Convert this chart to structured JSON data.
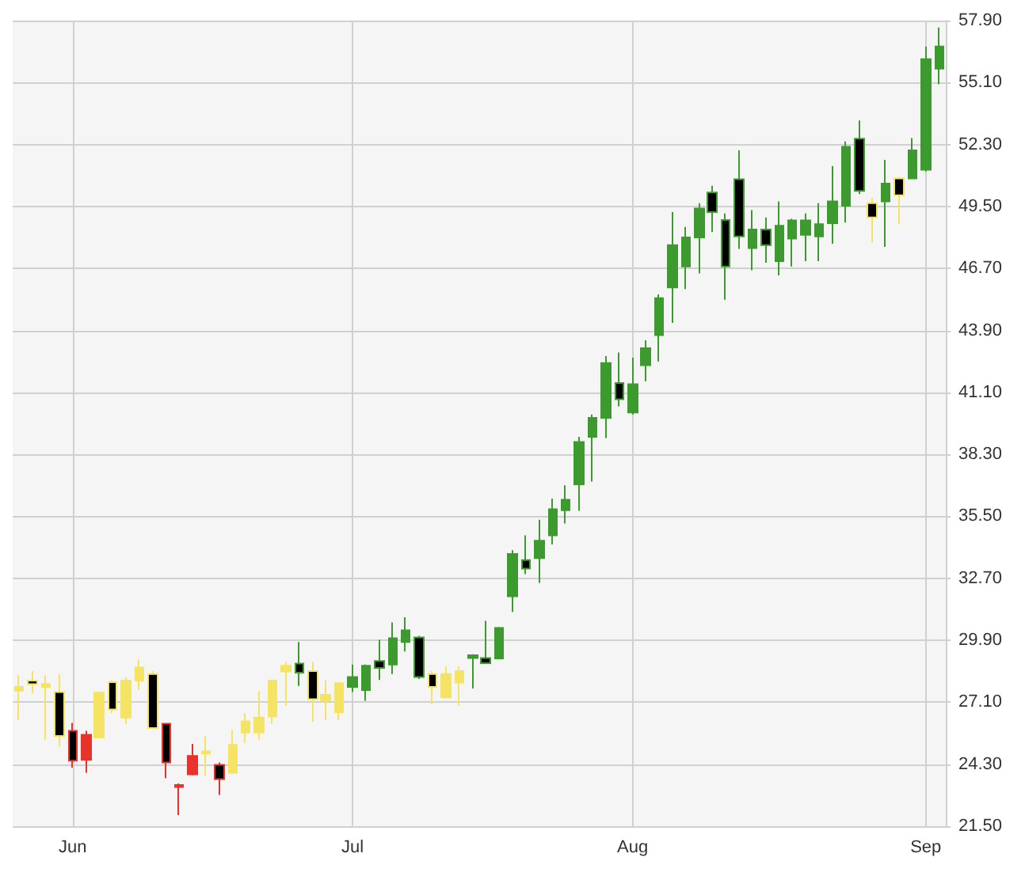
{
  "chart_data": {
    "type": "candlestick",
    "categories": [
      null,
      null,
      null,
      null,
      "Jun",
      null,
      null,
      null,
      null,
      null,
      null,
      null,
      null,
      null,
      null,
      null,
      null,
      null,
      null,
      null,
      null,
      null,
      null,
      null,
      null,
      "Jul",
      null,
      null,
      null,
      null,
      null,
      null,
      null,
      null,
      null,
      null,
      null,
      null,
      null,
      null,
      null,
      null,
      null,
      null,
      null,
      null,
      "Aug",
      null,
      null,
      null,
      null,
      null,
      null,
      null,
      null,
      null,
      null,
      null,
      null,
      null,
      null,
      null,
      null,
      null,
      null,
      null,
      null,
      null,
      "Sep",
      null
    ],
    "ohlc": [
      [
        27.62,
        28.32,
        26.29,
        27.79
      ],
      [
        28.08,
        28.51,
        27.49,
        27.92
      ],
      [
        27.79,
        28.32,
        25.41,
        27.92
      ],
      [
        27.56,
        28.37,
        25.1,
        25.58
      ],
      [
        25.81,
        26.17,
        24.15,
        24.46
      ],
      [
        24.5,
        25.81,
        23.91,
        25.63
      ],
      [
        25.51,
        27.6,
        25.45,
        27.53
      ],
      [
        28.01,
        28.1,
        26.6,
        26.77
      ],
      [
        26.41,
        28.24,
        26.1,
        28.08
      ],
      [
        28.08,
        29.03,
        27.65,
        28.67
      ],
      [
        28.37,
        28.51,
        25.9,
        25.93
      ],
      [
        26.13,
        26.15,
        23.67,
        24.38
      ],
      [
        23.27,
        23.43,
        22.0,
        23.36
      ],
      [
        23.84,
        25.22,
        23.8,
        24.67
      ],
      [
        24.79,
        25.58,
        23.79,
        24.88
      ],
      [
        24.27,
        24.38,
        22.91,
        23.63
      ],
      [
        23.91,
        25.86,
        23.9,
        25.17
      ],
      [
        25.74,
        26.6,
        25.27,
        26.24
      ],
      [
        25.74,
        27.6,
        25.41,
        26.41
      ],
      [
        26.46,
        28.1,
        26.13,
        28.08
      ],
      [
        28.49,
        28.92,
        26.94,
        28.75
      ],
      [
        28.85,
        29.82,
        27.84,
        28.44
      ],
      [
        28.51,
        28.92,
        26.22,
        27.24
      ],
      [
        27.17,
        28.11,
        26.29,
        27.44
      ],
      [
        26.65,
        28.0,
        26.29,
        27.96
      ],
      [
        27.79,
        28.8,
        27.56,
        28.24
      ],
      [
        27.65,
        28.8,
        27.17,
        28.75
      ],
      [
        28.96,
        29.92,
        28.11,
        28.65
      ],
      [
        28.8,
        30.71,
        28.37,
        29.99
      ],
      [
        29.82,
        30.94,
        29.39,
        30.35
      ],
      [
        30.03,
        30.1,
        28.15,
        28.24
      ],
      [
        28.37,
        28.51,
        27.01,
        27.79
      ],
      [
        27.32,
        28.72,
        27.3,
        28.37
      ],
      [
        27.99,
        28.72,
        26.94,
        28.51
      ],
      [
        29.1,
        29.27,
        27.72,
        29.22
      ],
      [
        29.1,
        30.78,
        28.85,
        28.87
      ],
      [
        29.08,
        30.5,
        29.08,
        30.46
      ],
      [
        31.89,
        33.97,
        31.18,
        33.8
      ],
      [
        33.52,
        34.64,
        32.89,
        33.14
      ],
      [
        33.61,
        35.35,
        32.49,
        34.4
      ],
      [
        34.64,
        36.3,
        34.23,
        35.82
      ],
      [
        35.78,
        36.9,
        35.18,
        36.25
      ],
      [
        36.95,
        39.09,
        35.75,
        38.86
      ],
      [
        39.09,
        40.1,
        37.07,
        39.95
      ],
      [
        39.95,
        42.74,
        39.04,
        42.43
      ],
      [
        41.52,
        42.9,
        40.47,
        40.79
      ],
      [
        40.19,
        42.67,
        40.1,
        41.47
      ],
      [
        42.33,
        43.45,
        41.6,
        43.1
      ],
      [
        43.69,
        45.53,
        42.5,
        45.36
      ],
      [
        45.84,
        49.25,
        44.24,
        47.75
      ],
      [
        46.79,
        48.58,
        45.77,
        48.1
      ],
      [
        48.1,
        49.65,
        46.48,
        49.41
      ],
      [
        50.13,
        50.44,
        48.34,
        49.25
      ],
      [
        48.89,
        49.18,
        45.29,
        46.79
      ],
      [
        50.73,
        52.04,
        47.58,
        48.15
      ],
      [
        47.62,
        49.34,
        46.62,
        48.46
      ],
      [
        48.46,
        49.01,
        46.96,
        47.75
      ],
      [
        47.03,
        49.73,
        46.39,
        48.63
      ],
      [
        48.05,
        48.94,
        46.79,
        48.87
      ],
      [
        48.22,
        49.18,
        47.03,
        48.87
      ],
      [
        48.15,
        49.65,
        47.03,
        48.7
      ],
      [
        48.75,
        51.32,
        47.82,
        49.73
      ],
      [
        49.53,
        52.44,
        48.77,
        52.2
      ],
      [
        52.56,
        53.39,
        50.06,
        50.2
      ],
      [
        49.65,
        49.89,
        47.87,
        49.01
      ],
      [
        49.73,
        51.61,
        47.67,
        50.53
      ],
      [
        50.77,
        50.84,
        48.7,
        50.01
      ],
      [
        50.77,
        52.59,
        50.73,
        52.04
      ],
      [
        51.16,
        56.73,
        51.09,
        56.16
      ],
      [
        55.73,
        57.59,
        55.02,
        56.73
      ]
    ],
    "colors": [
      "#f5e463",
      "#f5e463",
      "#f5e463",
      "#f5e463",
      "#e8332a",
      "#e8332a",
      "#f5e463",
      "#f5e463",
      "#f5e463",
      "#f5e463",
      "#f5e463",
      "#e8332a",
      "#e8332a",
      "#e8332a",
      "#f5e463",
      "#e8332a",
      "#f5e463",
      "#f5e463",
      "#f5e463",
      "#f5e463",
      "#f5e463",
      "#3d9a2f",
      "#f5e463",
      "#f5e463",
      "#f5e463",
      "#3d9a2f",
      "#3d9a2f",
      "#3d9a2f",
      "#3d9a2f",
      "#3d9a2f",
      "#3d9a2f",
      "#f5e463",
      "#f5e463",
      "#f5e463",
      "#3d9a2f",
      "#3d9a2f",
      "#3d9a2f",
      "#3d9a2f",
      "#3d9a2f",
      "#3d9a2f",
      "#3d9a2f",
      "#3d9a2f",
      "#3d9a2f",
      "#3d9a2f",
      "#3d9a2f",
      "#3d9a2f",
      "#3d9a2f",
      "#3d9a2f",
      "#3d9a2f",
      "#3d9a2f",
      "#3d9a2f",
      "#3d9a2f",
      "#3d9a2f",
      "#3d9a2f",
      "#3d9a2f",
      "#3d9a2f",
      "#3d9a2f",
      "#3d9a2f",
      "#3d9a2f",
      "#3d9a2f",
      "#3d9a2f",
      "#3d9a2f",
      "#3d9a2f",
      "#3d9a2f",
      "#f5e463",
      "#3d9a2f",
      "#f5e463",
      "#3d9a2f",
      "#3d9a2f",
      "#3d9a2f"
    ],
    "ylim": [
      21.5,
      57.9
    ],
    "yticks": [
      {
        "value": 21.5,
        "label": "21.50"
      },
      {
        "value": 24.3,
        "label": "24.30"
      },
      {
        "value": 27.1,
        "label": "27.10"
      },
      {
        "value": 29.9,
        "label": "29.90"
      },
      {
        "value": 32.7,
        "label": "32.70"
      },
      {
        "value": 35.5,
        "label": "35.50"
      },
      {
        "value": 38.3,
        "label": "38.30"
      },
      {
        "value": 41.1,
        "label": "41.10"
      },
      {
        "value": 43.9,
        "label": "43.90"
      },
      {
        "value": 46.7,
        "label": "46.70"
      },
      {
        "value": 49.5,
        "label": "49.50"
      },
      {
        "value": 52.3,
        "label": "52.30"
      },
      {
        "value": 55.1,
        "label": "55.10"
      },
      {
        "value": 57.9,
        "label": "57.90"
      }
    ],
    "grid": true
  }
}
